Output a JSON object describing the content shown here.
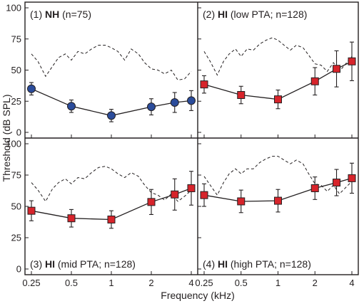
{
  "chart_data": {
    "type": "line",
    "xlabel": "Frequency (kHz)",
    "ylabel": "Threshold (dB SPL)",
    "x_scale": "log",
    "xlim": [
      0.25,
      4
    ],
    "ylim": [
      0,
      100
    ],
    "x_ticks": [
      0.25,
      0.5,
      1,
      2,
      4
    ],
    "x_tick_labels": [
      "0.25",
      "0.5",
      "1",
      "2",
      "4"
    ],
    "y_ticks": [
      0,
      25,
      50,
      75,
      100
    ],
    "y_tick_labels": [
      "0",
      "25",
      "50",
      "75",
      "100"
    ],
    "grid": false,
    "panels": [
      {
        "title_prefix": "(1) ",
        "title_bold": "NH",
        "title_suffix": " (n=75)",
        "title_position": "top-left",
        "marker": "circle",
        "marker_color": "#2b4c9b",
        "measured": {
          "x": [
            0.25,
            0.5,
            1,
            2,
            3,
            4
          ],
          "y": [
            35,
            21,
            13.5,
            20.5,
            24,
            25.5
          ],
          "err": [
            5,
            5,
            5,
            6.5,
            8,
            8
          ]
        },
        "dashed": {
          "x": [
            0.25,
            0.28,
            0.32,
            0.36,
            0.4,
            0.45,
            0.5,
            0.56,
            0.63,
            0.71,
            0.8,
            0.9,
            1.0,
            1.12,
            1.26,
            1.41,
            1.6,
            1.78,
            2.0,
            2.24,
            2.52,
            2.83,
            3.17,
            3.56,
            4.0
          ],
          "y": [
            63,
            57,
            45,
            53,
            60,
            63,
            58,
            65,
            63,
            67,
            70,
            70,
            68,
            65,
            58,
            67,
            63,
            56,
            51,
            50,
            47,
            50,
            42,
            43,
            49
          ]
        }
      },
      {
        "title_prefix": "(2) ",
        "title_bold": "HI",
        "title_suffix": " (low PTA; n=128)",
        "title_position": "top-left",
        "marker": "square",
        "marker_color": "#d7242b",
        "measured": {
          "x": [
            0.25,
            0.5,
            1,
            2,
            3,
            4
          ],
          "y": [
            38.5,
            30,
            26.5,
            41,
            51,
            57
          ],
          "err": [
            7,
            7,
            7.5,
            11,
            14.5,
            15.5
          ]
        },
        "dashed": {
          "x": [
            0.25,
            0.28,
            0.32,
            0.36,
            0.4,
            0.45,
            0.5,
            0.56,
            0.63,
            0.71,
            0.8,
            0.9,
            1.0,
            1.12,
            1.26,
            1.41,
            1.6,
            1.78,
            2.0,
            2.24,
            2.52,
            2.83,
            3.17,
            3.56,
            4.0
          ],
          "y": [
            65,
            57,
            46,
            57,
            63,
            67,
            61,
            67,
            66,
            71,
            74,
            76,
            74,
            70,
            66,
            70,
            68,
            62,
            55,
            54,
            49,
            56,
            49,
            55,
            61
          ]
        }
      },
      {
        "title_prefix": "(3) ",
        "title_bold": "HI",
        "title_suffix": " (mid PTA; n=128)",
        "title_position": "bottom-left",
        "marker": "square",
        "marker_color": "#d7242b",
        "measured": {
          "x": [
            0.25,
            0.5,
            1,
            2,
            3,
            4
          ],
          "y": [
            46.5,
            40.5,
            39.5,
            53.5,
            59.5,
            64.5
          ],
          "err": [
            8,
            7,
            7,
            10,
            12.5,
            13.5
          ]
        },
        "dashed": {
          "x": [
            0.25,
            0.28,
            0.32,
            0.36,
            0.4,
            0.45,
            0.5,
            0.56,
            0.63,
            0.71,
            0.8,
            0.9,
            1.0,
            1.12,
            1.26,
            1.41,
            1.6,
            1.78,
            2.0,
            2.24,
            2.52,
            2.83,
            3.17,
            3.56,
            4.0
          ],
          "y": [
            69,
            63,
            54,
            64,
            69,
            72,
            68,
            73,
            72,
            77,
            81,
            82,
            80,
            76,
            73,
            77,
            74,
            67,
            61,
            59,
            55,
            60,
            54,
            58,
            63
          ]
        }
      },
      {
        "title_prefix": "(4) ",
        "title_bold": "HI",
        "title_suffix": " (high PTA; n=128)",
        "title_position": "bottom-left",
        "marker": "square",
        "marker_color": "#d7242b",
        "measured": {
          "x": [
            0.25,
            0.5,
            1,
            2,
            3,
            4
          ],
          "y": [
            59,
            54,
            54.5,
            64.5,
            69,
            72.5
          ],
          "err": [
            9,
            9,
            9,
            9,
            10.5,
            12
          ]
        },
        "dashed": {
          "x": [
            0.25,
            0.28,
            0.32,
            0.36,
            0.4,
            0.45,
            0.5,
            0.56,
            0.63,
            0.71,
            0.8,
            0.9,
            1.0,
            1.12,
            1.26,
            1.41,
            1.6,
            1.78,
            2.0,
            2.24,
            2.52,
            2.83,
            3.17,
            3.56,
            4.0
          ],
          "y": [
            74,
            67,
            59,
            69,
            76,
            80,
            76,
            80,
            80,
            85,
            88,
            90,
            90,
            87,
            84,
            87,
            84,
            76,
            68,
            67,
            62,
            67,
            60,
            65,
            70
          ]
        }
      }
    ]
  }
}
